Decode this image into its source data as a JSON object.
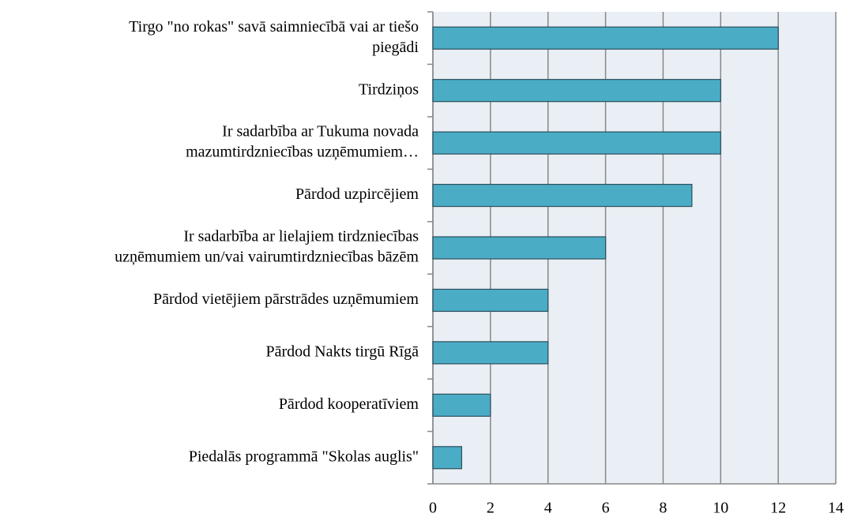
{
  "chart_data": {
    "type": "bar",
    "orientation": "horizontal",
    "categories": [
      [
        "Tirgo \"no rokas\" savā saimniecībā vai ar tiešo",
        "piegādi"
      ],
      [
        "Tirdziņos"
      ],
      [
        "Ir sadarbība ar Tukuma novada",
        "mazumtirdzniecības uzņēmumiem…"
      ],
      [
        "Pārdod uzpircējiem"
      ],
      [
        "Ir sadarbība ar lielajiem tirdzniecības",
        "uzņēmumiem un/vai vairumtirdzniecības bāzēm"
      ],
      [
        "Pārdod vietējiem pārstrādes uzņēmumiem"
      ],
      [
        "Pārdod Nakts tirgū Rīgā"
      ],
      [
        "Pārdod kooperatīviem"
      ],
      [
        "Piedalās programmā \"Skolas auglis\""
      ]
    ],
    "values": [
      12,
      10,
      10,
      9,
      6,
      4,
      4,
      2,
      1
    ],
    "color": "#4bacc6",
    "xlim": [
      0,
      14
    ],
    "xticks": [
      0,
      2,
      4,
      6,
      8,
      10,
      12,
      14
    ],
    "grid": true
  }
}
